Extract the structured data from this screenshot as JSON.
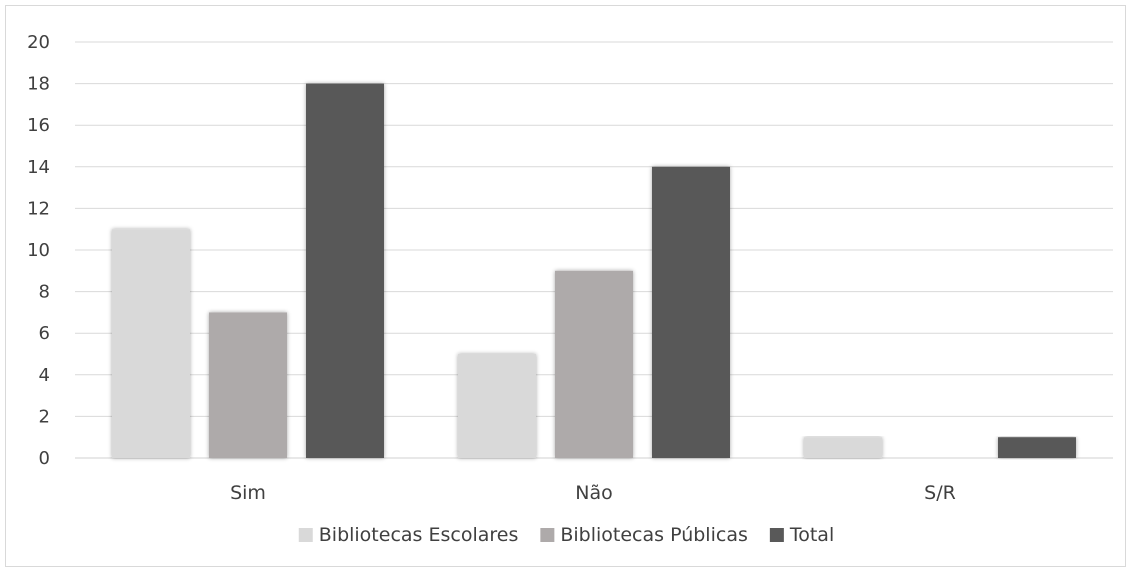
{
  "chart_data": {
    "type": "bar",
    "categories": [
      "Sim",
      "Não",
      "S/R"
    ],
    "series": [
      {
        "name": "Bibliotecas Escolares",
        "values": [
          11,
          5,
          1
        ],
        "color": "#d9d9d9"
      },
      {
        "name": "Bibliotecas Públicas",
        "values": [
          7,
          9,
          0
        ],
        "color": "#aeaaaa"
      },
      {
        "name": "Total",
        "values": [
          18,
          14,
          1
        ],
        "color": "#595959"
      }
    ],
    "ylim": [
      0,
      20
    ],
    "yticks": [
      "0",
      "2",
      "4",
      "6",
      "8",
      "10",
      "12",
      "14",
      "16",
      "18",
      "20"
    ],
    "grid": true,
    "legend_position": "bottom"
  }
}
